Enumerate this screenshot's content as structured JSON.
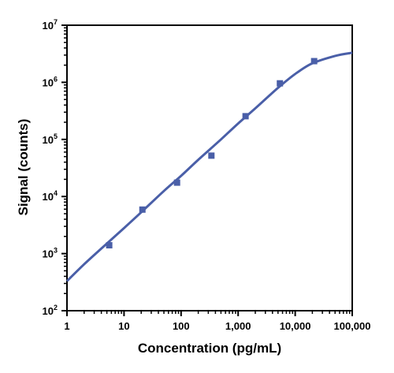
{
  "chart_data": {
    "type": "scatter",
    "xlabel": "Concentration (pg/mL)",
    "ylabel": "Signal (counts)",
    "x_scale": "log",
    "y_scale": "log",
    "xlim": [
      1,
      100000
    ],
    "ylim": [
      100,
      10000000
    ],
    "x_ticks": [
      {
        "value": 1,
        "label": "1"
      },
      {
        "value": 10,
        "label": "10"
      },
      {
        "value": 100,
        "label": "100"
      },
      {
        "value": 1000,
        "label": "1,000"
      },
      {
        "value": 10000,
        "label": "10,000"
      },
      {
        "value": 100000,
        "label": "100,000"
      }
    ],
    "y_ticks": [
      {
        "value": 100,
        "base": "10",
        "exp": "2"
      },
      {
        "value": 1000,
        "base": "10",
        "exp": "3"
      },
      {
        "value": 10000,
        "base": "10",
        "exp": "4"
      },
      {
        "value": 100000,
        "base": "10",
        "exp": "5"
      },
      {
        "value": 1000000,
        "base": "10",
        "exp": "6"
      },
      {
        "value": 10000000,
        "base": "10",
        "exp": "7"
      }
    ],
    "points": [
      {
        "x": 5.5,
        "y": 1400
      },
      {
        "x": 21,
        "y": 5900
      },
      {
        "x": 85,
        "y": 17500
      },
      {
        "x": 340,
        "y": 52000
      },
      {
        "x": 1350,
        "y": 255000
      },
      {
        "x": 5400,
        "y": 960000
      },
      {
        "x": 21500,
        "y": 2350000
      }
    ],
    "fit_curve": {
      "x": [
        1,
        2,
        5,
        10,
        20,
        50,
        100,
        200,
        500,
        1000,
        2000,
        5000,
        10000,
        20000,
        50000,
        100000
      ],
      "y": [
        330,
        650,
        1500,
        2800,
        5300,
        12500,
        23000,
        44000,
        100000,
        190000,
        350000,
        800000,
        1400000,
        2150000,
        2900000,
        3300000
      ]
    },
    "grid": false,
    "colors": {
      "marker": "#4a5fa8",
      "curve": "#4a5fa8",
      "axis": "#000000"
    }
  }
}
